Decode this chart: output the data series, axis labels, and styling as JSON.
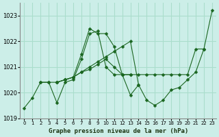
{
  "title": "Graphe pression niveau de la mer (hPa)",
  "bg_color": "#cceee8",
  "grid_color": "#aaddcc",
  "line_color": "#1a6620",
  "marker_color": "#1a6620",
  "xlim": [
    -0.5,
    23.5
  ],
  "ylim": [
    1019.0,
    1023.5
  ],
  "yticks": [
    1019,
    1020,
    1021,
    1022,
    1023
  ],
  "xtick_labels": [
    "0",
    "1",
    "2",
    "3",
    "4",
    "5",
    "6",
    "7",
    "8",
    "9",
    "10",
    "11",
    "12",
    "13",
    "14",
    "15",
    "16",
    "17",
    "18",
    "19",
    "20",
    "21",
    "22",
    "23"
  ],
  "series_x": [
    [
      0,
      1,
      2,
      3,
      4,
      5,
      6,
      7,
      8,
      9,
      10,
      11,
      12,
      13,
      14
    ],
    [
      2,
      3,
      4,
      5,
      6,
      7,
      8,
      9,
      10,
      11,
      12,
      13
    ],
    [
      4,
      5,
      6,
      7,
      8,
      9,
      10,
      11,
      12,
      13,
      14,
      15,
      16,
      17,
      18,
      19,
      20,
      21,
      22
    ],
    [
      4,
      5,
      6,
      7,
      8,
      9,
      10,
      11,
      12,
      13,
      14,
      15,
      16,
      17,
      18,
      19,
      20,
      21,
      22,
      23
    ]
  ],
  "series_y": [
    [
      1019.4,
      1019.8,
      1020.4,
      1020.4,
      1019.6,
      1020.4,
      1020.5,
      1021.3,
      1022.3,
      1022.4,
      1021.0,
      1020.7,
      1020.7,
      1019.9,
      1020.3
    ],
    [
      1020.4,
      1020.4,
      1020.4,
      1020.5,
      1020.6,
      1021.5,
      1022.5,
      1022.3,
      1022.3,
      1021.8,
      1020.7,
      1020.7
    ],
    [
      1020.4,
      1020.5,
      1020.6,
      1020.8,
      1020.9,
      1021.1,
      1021.3,
      1021.0,
      1020.7,
      1020.7,
      1020.7,
      1020.7,
      1020.7,
      1020.7,
      1020.7,
      1020.7,
      1020.7,
      1021.7,
      1021.7
    ],
    [
      1020.4,
      1020.5,
      1020.6,
      1020.8,
      1021.0,
      1021.2,
      1021.4,
      1021.6,
      1021.8,
      1022.0,
      1020.3,
      1019.7,
      1019.5,
      1019.7,
      1020.1,
      1020.2,
      1020.5,
      1020.8,
      1021.7,
      1023.2
    ]
  ]
}
